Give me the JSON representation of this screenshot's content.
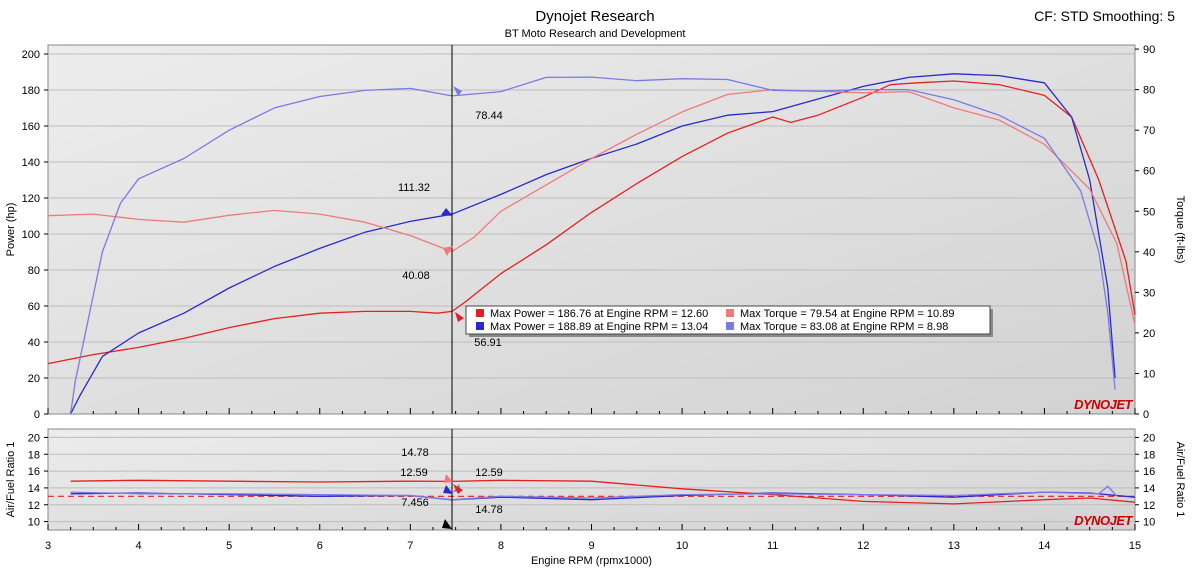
{
  "header": {
    "title": "Dynojet Research",
    "subtitle": "BT Moto Research and Development",
    "cf_label": "CF: STD Smoothing: 5"
  },
  "colors": {
    "run1": "#e62020",
    "run1_light": "#f07a7a",
    "run2": "#2a2acc",
    "run2_light": "#7a7ae8",
    "cursor": "#000000"
  },
  "chart_data": [
    {
      "type": "line",
      "xlabel": "",
      "ylabel": "Power (hp)",
      "y2label": "Torque (ft-lbs)",
      "xlim": [
        3,
        15
      ],
      "ylim": [
        0,
        205
      ],
      "y2lim": [
        0,
        91
      ],
      "yticks": [
        "0",
        "20",
        "40",
        "60",
        "80",
        "100",
        "120",
        "140",
        "160",
        "180",
        "200"
      ],
      "y2ticks": [
        "0",
        "10",
        "20",
        "30",
        "40",
        "50",
        "60",
        "70",
        "80",
        "90"
      ],
      "grid": true,
      "series": [
        {
          "name": "",
          "axis": "left",
          "color_key": "run1",
          "x": [
            3.0,
            3.5,
            4.0,
            4.5,
            5.0,
            5.5,
            6.0,
            6.5,
            7.0,
            7.3,
            7.46,
            7.6,
            8.0,
            8.5,
            9.0,
            9.5,
            10.0,
            10.5,
            11.0,
            11.2,
            11.5,
            12.0,
            12.3,
            12.6,
            13.0,
            13.5,
            14.0,
            14.3,
            14.6,
            14.9,
            15.0
          ],
          "y": [
            28,
            33,
            37,
            42,
            48,
            53,
            56,
            57,
            57,
            56,
            57,
            62,
            78,
            94,
            112,
            128,
            143,
            156,
            165,
            162,
            166,
            176,
            183,
            184,
            185,
            183,
            177,
            165,
            130,
            85,
            55
          ]
        },
        {
          "name": "",
          "axis": "left",
          "color_key": "run2",
          "x": [
            3.25,
            3.35,
            3.6,
            4.0,
            4.5,
            5.0,
            5.5,
            6.0,
            6.5,
            7.0,
            7.46,
            8.0,
            8.5,
            9.0,
            9.5,
            10.0,
            10.5,
            11.0,
            11.5,
            12.0,
            12.5,
            13.0,
            13.5,
            14.0,
            14.3,
            14.5,
            14.7,
            14.78
          ],
          "y": [
            0,
            10,
            32,
            45,
            56,
            70,
            82,
            92,
            101,
            107,
            111,
            122,
            133,
            142,
            150,
            160,
            166,
            168,
            175,
            182,
            187,
            189,
            188,
            184,
            165,
            130,
            70,
            20
          ]
        },
        {
          "name": "",
          "axis": "right",
          "color_key": "run1_light",
          "x": [
            3.0,
            3.5,
            4.0,
            4.5,
            5.0,
            5.5,
            6.0,
            6.5,
            7.0,
            7.46,
            7.7,
            8.0,
            8.5,
            9.0,
            9.5,
            10.0,
            10.5,
            11.0,
            11.5,
            12.0,
            12.5,
            13.0,
            13.5,
            14.0,
            14.5,
            14.8,
            15.0
          ],
          "y": [
            48.9,
            49.3,
            48.0,
            47.3,
            49.0,
            50.2,
            49.3,
            47.3,
            44.0,
            40.08,
            43.5,
            50,
            56.5,
            63,
            69,
            74.5,
            78.8,
            80,
            79.6,
            79.2,
            79.5,
            75.5,
            72.5,
            66.5,
            55.5,
            42,
            22
          ]
        },
        {
          "name": "",
          "axis": "right",
          "color_key": "run2_light",
          "x": [
            3.25,
            3.3,
            3.6,
            3.8,
            4.0,
            4.5,
            5.0,
            5.5,
            6.0,
            6.5,
            7.0,
            7.46,
            8.0,
            8.5,
            9.0,
            9.5,
            10.0,
            10.5,
            11.0,
            11.5,
            12.0,
            12.5,
            13.0,
            13.5,
            14.0,
            14.4,
            14.6,
            14.7,
            14.78
          ],
          "y": [
            0,
            8,
            40,
            52,
            58,
            63,
            70,
            75.5,
            78.3,
            79.8,
            80.3,
            78.44,
            79.5,
            83,
            83.08,
            82.2,
            82.7,
            82.5,
            79.8,
            79.6,
            80,
            80,
            77.5,
            73.7,
            68,
            55,
            40,
            25,
            6
          ]
        }
      ],
      "cursor": {
        "x": 7.46,
        "labels": [
          {
            "text": "111.32",
            "color_key": "run2"
          },
          {
            "text": "78.44",
            "color_key": "run2_light"
          },
          {
            "text": "40.08",
            "color_key": "run1_light"
          },
          {
            "text": "56.91",
            "color_key": "run1"
          }
        ]
      },
      "legend": {
        "placement": "center-right",
        "entries": [
          {
            "text": "Max Power = 186.76 at Engine RPM = 12.60",
            "color_key": "run1"
          },
          {
            "text": "Max Torque = 79.54 at Engine RPM = 10.89",
            "color_key": "run1_light"
          },
          {
            "text": "Max Power = 188.89 at Engine RPM = 13.04",
            "color_key": "run2"
          },
          {
            "text": "Max Torque = 83.08 at Engine RPM = 8.98",
            "color_key": "run2_light"
          }
        ]
      },
      "watermark": "DYNOJET"
    },
    {
      "type": "line",
      "xlabel": "Engine RPM (rpmx1000)",
      "ylabel": "Air/Fuel Ratio 1",
      "y2label": "Air/Fuel Ratio 1",
      "xlim": [
        3,
        15
      ],
      "ylim": [
        9,
        21
      ],
      "xticks": [
        "3",
        "4",
        "5",
        "6",
        "7",
        "8",
        "9",
        "10",
        "11",
        "12",
        "13",
        "14",
        "15"
      ],
      "yticks": [
        "10",
        "12",
        "14",
        "16",
        "18",
        "20"
      ],
      "y2ticks": [
        "10",
        "12",
        "14",
        "16",
        "18",
        "20"
      ],
      "reference_line": 13.0,
      "grid": true,
      "series": [
        {
          "name": "",
          "color_key": "run1",
          "x": [
            3.25,
            4,
            5,
            6,
            7,
            7.46,
            8,
            9,
            10,
            11,
            12,
            13,
            14,
            14.5,
            15
          ],
          "y": [
            14.8,
            14.9,
            14.8,
            14.7,
            14.8,
            14.78,
            14.9,
            14.8,
            13.9,
            13.2,
            12.4,
            12.1,
            12.6,
            12.8,
            12.3
          ]
        },
        {
          "name": "",
          "color_key": "run2",
          "x": [
            3.25,
            4,
            5,
            6,
            7,
            7.46,
            8,
            9,
            10,
            11,
            12,
            13,
            14,
            14.5,
            15
          ],
          "y": [
            13.3,
            13.4,
            13.2,
            13.0,
            13.1,
            12.59,
            12.9,
            12.6,
            13.1,
            13.4,
            13.2,
            12.9,
            13.5,
            13.4,
            12.9
          ]
        },
        {
          "name": "",
          "color_key": "run2_light",
          "x": [
            3.25,
            4,
            5,
            6,
            7,
            7.46,
            8,
            9,
            10,
            11,
            12,
            13,
            14,
            14.6,
            14.7,
            14.8
          ],
          "y": [
            13.5,
            13.3,
            13.3,
            13.2,
            13.1,
            12.59,
            13.0,
            12.8,
            13.2,
            13.3,
            13.2,
            13.1,
            13.5,
            13.3,
            14.2,
            13.0
          ]
        }
      ],
      "cursor": {
        "x": 7.46,
        "labels": [
          {
            "text": "14.78",
            "color_key": "run1_light"
          },
          {
            "text": "12.59",
            "color_key": "run2"
          },
          {
            "text": "12.59",
            "color_key": "run2_light"
          },
          {
            "text": "14.78",
            "color_key": "run1"
          },
          {
            "text": "7.456",
            "color_key": "cursor"
          }
        ]
      },
      "watermark": "DYNOJET"
    }
  ]
}
